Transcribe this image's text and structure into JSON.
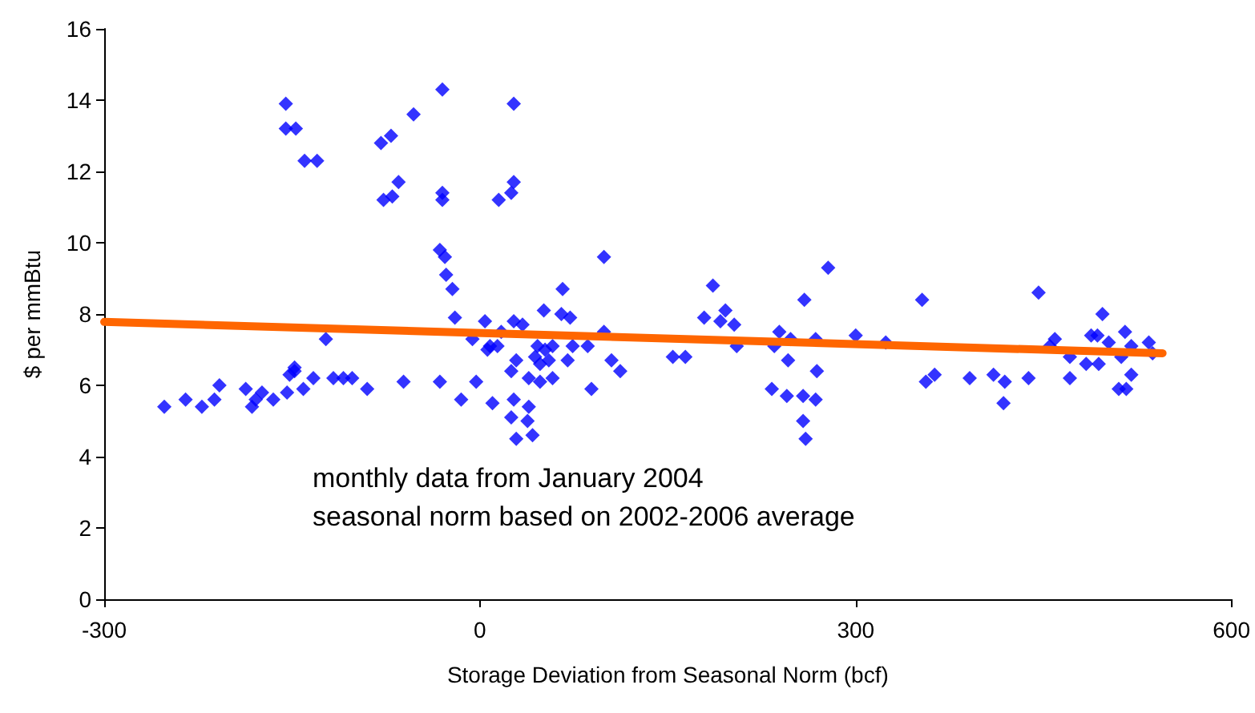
{
  "chart_data": {
    "type": "scatter",
    "xlabel": "Storage Deviation from Seasonal Norm (bcf)",
    "ylabel": "$ per mmBtu",
    "xlim": [
      -300,
      600
    ],
    "xticks": [
      -300,
      0,
      300,
      600
    ],
    "ylim": [
      0,
      16
    ],
    "yticks": [
      0,
      2,
      4,
      6,
      8,
      10,
      12,
      14,
      16
    ],
    "grid": false,
    "marker": "diamond",
    "annotations": [
      "monthly data from January 2004",
      "seasonal norm based on 2002-2006 average"
    ],
    "series": [
      {
        "color": "#0000ff",
        "x": [
          -252,
          -235,
          -222,
          -212,
          -208,
          -187,
          -182,
          -179,
          -174,
          -165,
          -154,
          -152,
          -148,
          -148,
          -141,
          -133,
          -123,
          -117,
          -109,
          -102,
          -90,
          -61,
          -32,
          -15,
          -3,
          4,
          -6,
          6,
          -155,
          -155,
          -147,
          -140,
          -130,
          -79,
          -71,
          -53,
          -77,
          -70,
          -65,
          -30,
          -30,
          -30,
          -32,
          -28,
          -27,
          -22,
          -20,
          27,
          25,
          15,
          27,
          99,
          66,
          27,
          34,
          51,
          65,
          72,
          17,
          8,
          14,
          46,
          52,
          58,
          74,
          86,
          99,
          44,
          48,
          55,
          70,
          105,
          112,
          29,
          25,
          39,
          48,
          58,
          89,
          10,
          27,
          39,
          25,
          38,
          29,
          42,
          154,
          164,
          186,
          179,
          196,
          192,
          203,
          205,
          233,
          239,
          248,
          235,
          246,
          245,
          258,
          258,
          260,
          259,
          278,
          268,
          269,
          268,
          300,
          324,
          353,
          356,
          363,
          391,
          410,
          419,
          418,
          438,
          446,
          459,
          455,
          471,
          471,
          484,
          488,
          493,
          497,
          494,
          502,
          515,
          512,
          520,
          520,
          510,
          516,
          534,
          537
        ],
        "values": [
          5.4,
          5.6,
          5.4,
          5.6,
          6.0,
          5.9,
          5.4,
          5.6,
          5.8,
          5.6,
          5.8,
          6.3,
          6.4,
          6.5,
          5.9,
          6.2,
          7.3,
          6.2,
          6.2,
          6.2,
          5.9,
          6.1,
          6.1,
          5.6,
          6.1,
          7.8,
          7.3,
          7.0,
          13.9,
          13.2,
          13.2,
          12.3,
          12.3,
          12.8,
          13.0,
          13.6,
          11.2,
          11.3,
          11.7,
          14.3,
          11.4,
          11.2,
          9.8,
          9.6,
          9.1,
          8.7,
          7.9,
          11.7,
          11.4,
          11.2,
          13.9,
          9.6,
          8.7,
          7.8,
          7.7,
          8.1,
          8.0,
          7.9,
          7.5,
          7.1,
          7.1,
          7.1,
          7.0,
          7.1,
          7.1,
          7.1,
          7.5,
          6.8,
          6.6,
          6.7,
          6.7,
          6.7,
          6.4,
          6.7,
          6.4,
          6.2,
          6.1,
          6.2,
          5.9,
          5.5,
          5.6,
          5.4,
          5.1,
          5.0,
          4.5,
          4.6,
          6.8,
          6.8,
          8.8,
          7.9,
          8.1,
          7.8,
          7.7,
          7.1,
          5.9,
          7.5,
          7.3,
          7.1,
          6.7,
          5.7,
          5.7,
          5.0,
          4.5,
          8.4,
          9.3,
          7.3,
          6.4,
          5.6,
          7.4,
          7.2,
          8.4,
          6.1,
          6.3,
          6.2,
          6.3,
          6.1,
          5.5,
          6.2,
          8.6,
          7.3,
          7.1,
          6.8,
          6.2,
          6.6,
          7.4,
          7.4,
          8.0,
          6.6,
          7.2,
          7.5,
          6.8,
          7.1,
          6.3,
          5.9,
          5.9,
          7.2,
          6.9
        ]
      },
      {
        "type": "line",
        "color": "#ff6600",
        "marker": "none",
        "x": [
          -300,
          545
        ],
        "values": [
          7.78,
          6.9
        ]
      }
    ]
  }
}
